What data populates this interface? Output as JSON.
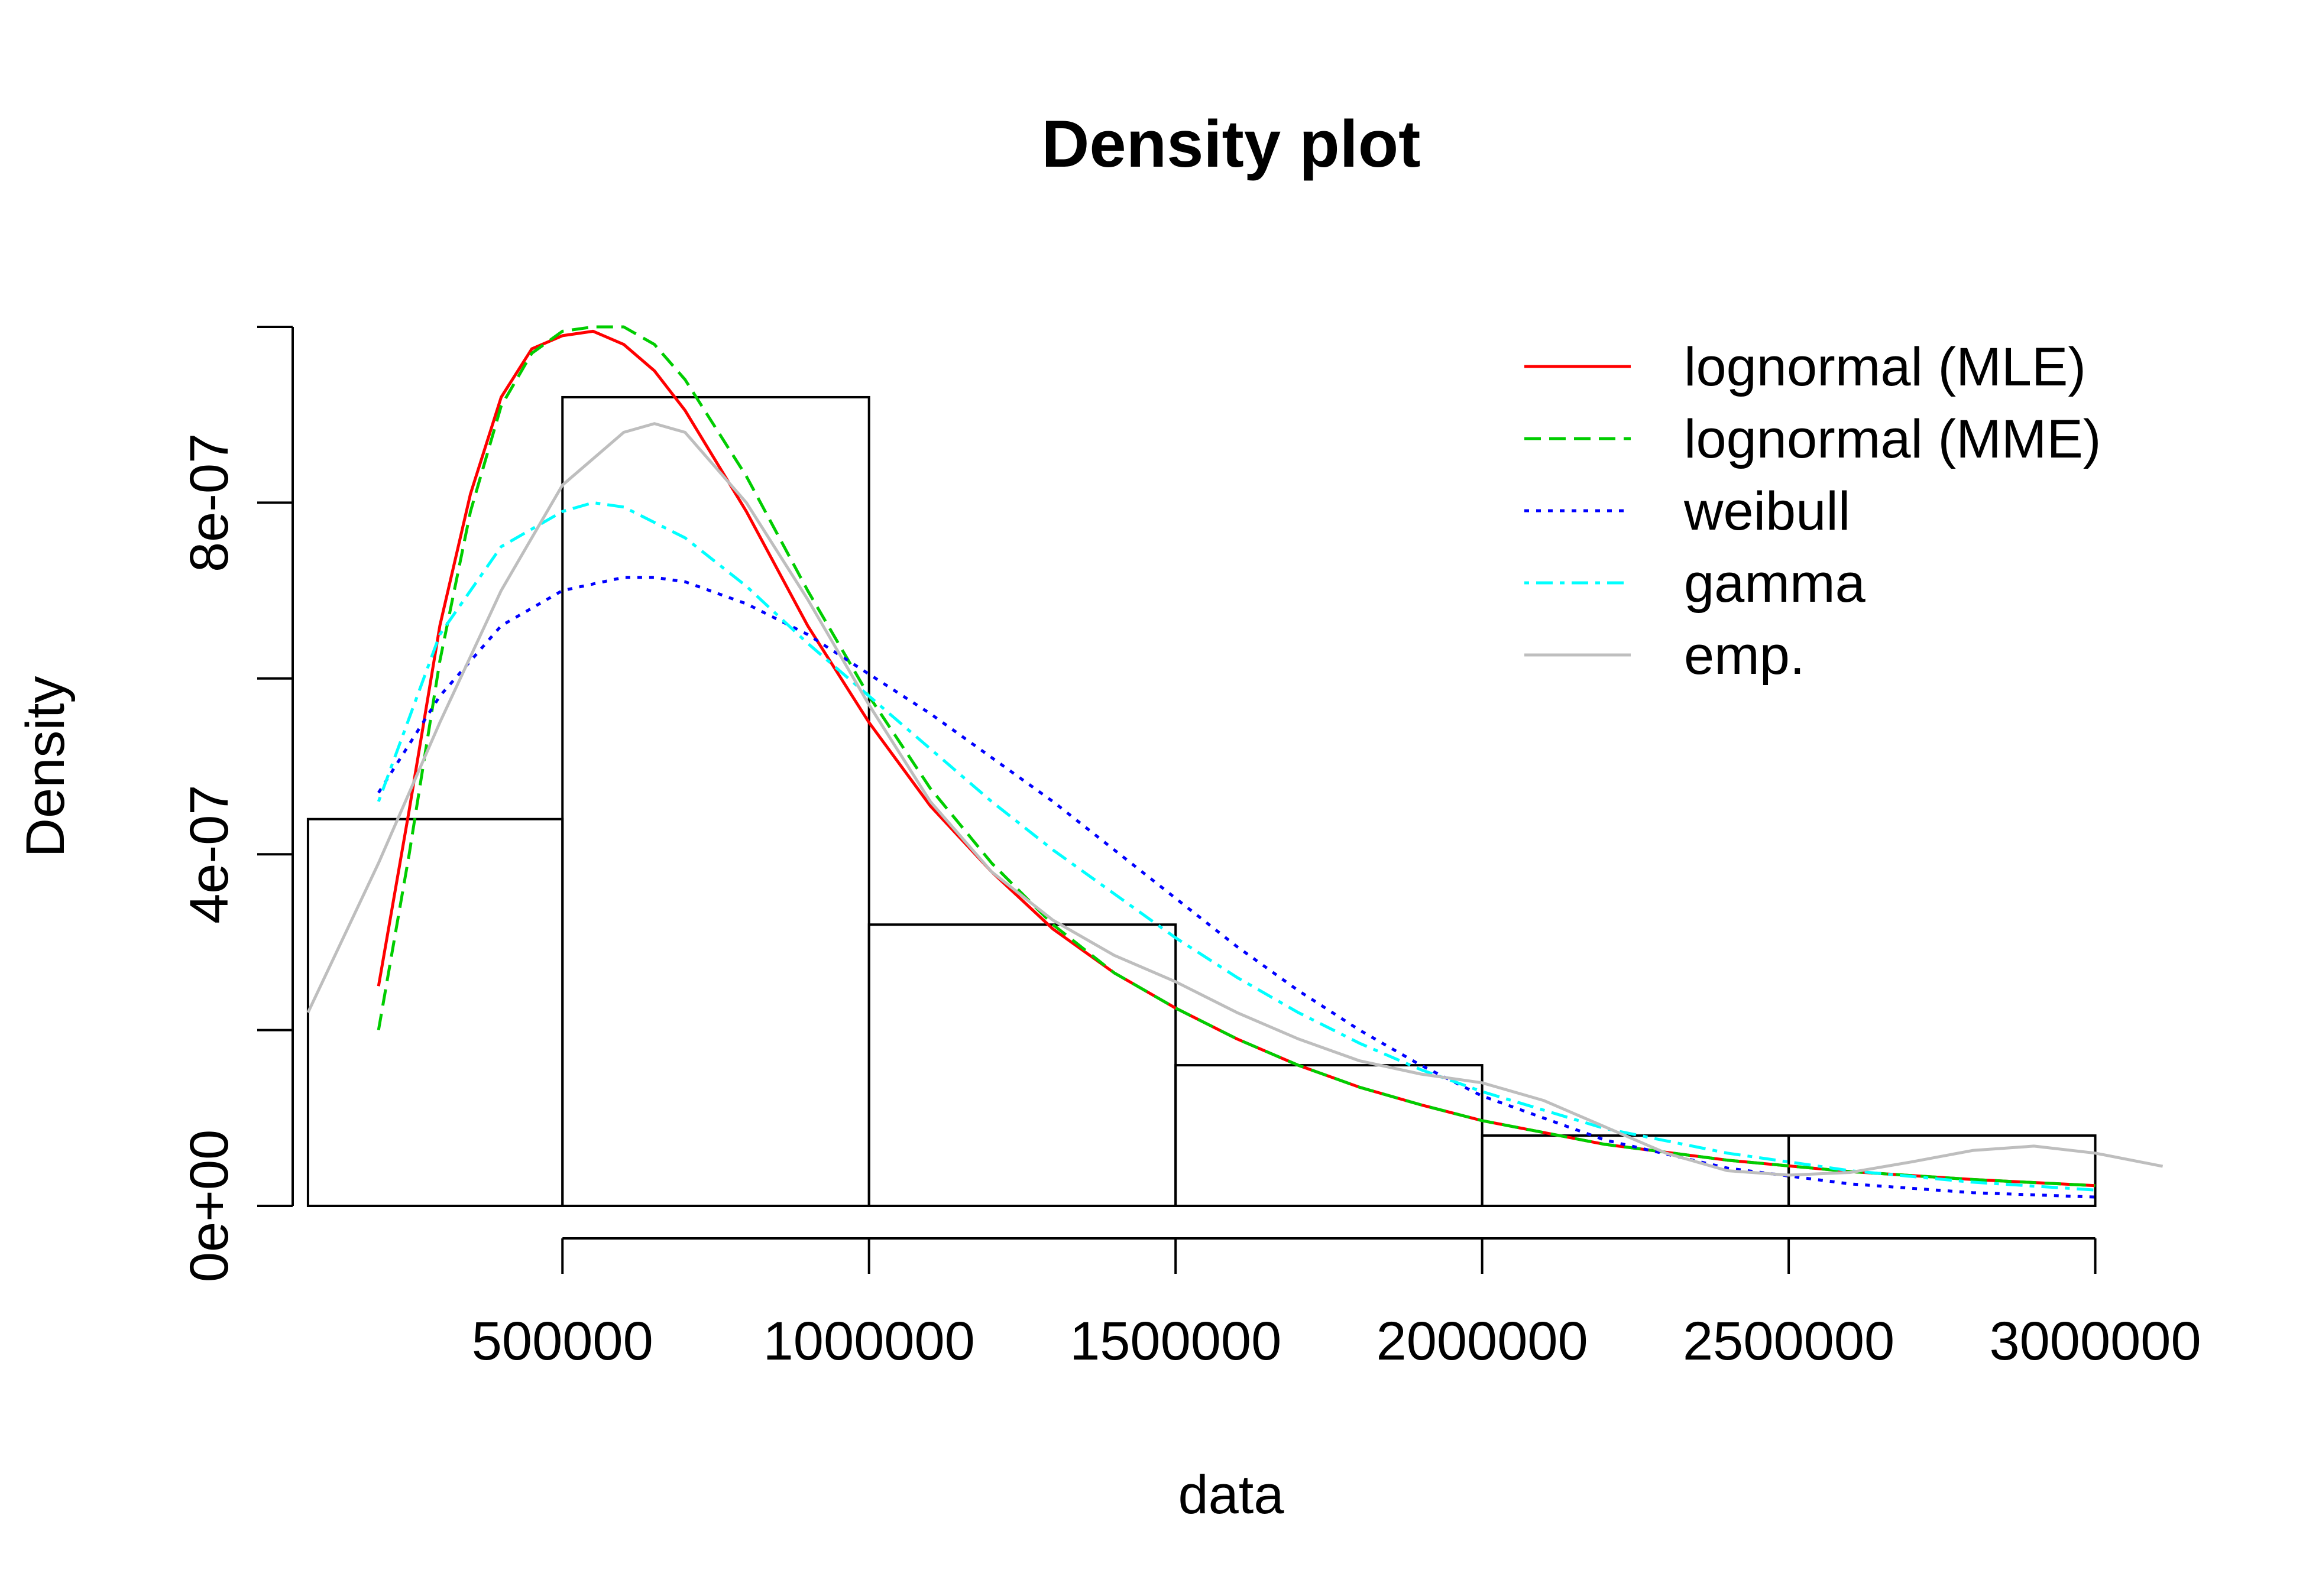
{
  "chart_data": {
    "type": "histogram",
    "title": "Density plot",
    "xlabel": "data",
    "ylabel": "Density",
    "xlim": [
      60000,
      3120000
    ],
    "ylim": [
      0,
      1e-06
    ],
    "x_ticks": [
      500000,
      1000000,
      1500000,
      2000000,
      2500000,
      3000000
    ],
    "x_tick_labels": [
      "500000",
      "1000000",
      "1500000",
      "2000000",
      "2500000",
      "3000000"
    ],
    "y_ticks": [
      0,
      2e-07,
      4e-07,
      6e-07,
      8e-07,
      1e-06
    ],
    "y_tick_labels": [
      "0e+00",
      "",
      "4e-07",
      "",
      "8e-07",
      ""
    ],
    "histogram": {
      "breaks": [
        85000,
        500000,
        1000000,
        1500000,
        2000000,
        2500000,
        3000000
      ],
      "densities": [
        4.4e-07,
        9.2e-07,
        3.2e-07,
        1.6e-07,
        8e-08,
        8e-08
      ]
    },
    "legend_position": "top-right",
    "series": [
      {
        "name": "lognormal (MLE)",
        "color": "#ff0000",
        "dash": "solid",
        "x": [
          200000,
          250000,
          300000,
          350000,
          400000,
          450000,
          500000,
          550000,
          600000,
          650000,
          700000,
          800000,
          900000,
          1000000,
          1100000,
          1200000,
          1300000,
          1400000,
          1500000,
          1600000,
          1700000,
          1800000,
          1900000,
          2000000,
          2200000,
          2400000,
          2600000,
          2800000,
          3000000
        ],
        "y": [
          2.5e-07,
          4.5e-07,
          6.6e-07,
          8.1e-07,
          9.2e-07,
          9.75e-07,
          9.9e-07,
          9.95e-07,
          9.8e-07,
          9.5e-07,
          9.05e-07,
          7.9e-07,
          6.6e-07,
          5.5e-07,
          4.55e-07,
          3.8e-07,
          3.15e-07,
          2.65e-07,
          2.25e-07,
          1.9e-07,
          1.6e-07,
          1.35e-07,
          1.15e-07,
          9.7e-08,
          7e-08,
          5.2e-08,
          3.9e-08,
          3e-08,
          2.3e-08
        ]
      },
      {
        "name": "lognormal (MME)",
        "color": "#00cd00",
        "dash": "dashed",
        "x": [
          200000,
          250000,
          300000,
          350000,
          400000,
          450000,
          500000,
          550000,
          600000,
          650000,
          700000,
          800000,
          900000,
          1000000,
          1100000,
          1200000,
          1300000,
          1400000,
          1500000,
          1600000,
          1700000,
          1800000,
          1900000,
          2000000,
          2200000,
          2400000,
          2600000,
          2800000,
          3000000
        ],
        "y": [
          2e-07,
          4e-07,
          6.2e-07,
          7.9e-07,
          9.1e-07,
          9.7e-07,
          9.95e-07,
          1e-06,
          1e-06,
          9.8e-07,
          9.4e-07,
          8.3e-07,
          7e-07,
          5.8e-07,
          4.75e-07,
          3.9e-07,
          3.2e-07,
          2.65e-07,
          2.25e-07,
          1.9e-07,
          1.6e-07,
          1.35e-07,
          1.15e-07,
          9.7e-08,
          7e-08,
          5.2e-08,
          3.9e-08,
          3e-08,
          2.3e-08
        ]
      },
      {
        "name": "weibull",
        "color": "#0000ff",
        "dash": "dotted",
        "x": [
          200000,
          300000,
          400000,
          500000,
          600000,
          650000,
          700000,
          800000,
          900000,
          1000000,
          1100000,
          1200000,
          1300000,
          1400000,
          1500000,
          1600000,
          1700000,
          1800000,
          1900000,
          2000000,
          2200000,
          2400000,
          2600000,
          2800000,
          3000000
        ],
        "y": [
          4.7e-07,
          5.8e-07,
          6.6e-07,
          7e-07,
          7.15e-07,
          7.15e-07,
          7.1e-07,
          6.85e-07,
          6.5e-07,
          6.05e-07,
          5.6e-07,
          5.1e-07,
          4.6e-07,
          4.05e-07,
          3.5e-07,
          2.95e-07,
          2.45e-07,
          2e-07,
          1.6e-07,
          1.25e-07,
          7.5e-08,
          4.3e-08,
          2.5e-08,
          1.5e-08,
          1e-08
        ]
      },
      {
        "name": "gamma",
        "color": "#00ffff",
        "dash": "dotdash",
        "x": [
          200000,
          300000,
          400000,
          500000,
          550000,
          600000,
          700000,
          800000,
          900000,
          1000000,
          1100000,
          1200000,
          1300000,
          1400000,
          1500000,
          1600000,
          1700000,
          1800000,
          1900000,
          2000000,
          2200000,
          2400000,
          2600000,
          2800000,
          3000000
        ],
        "y": [
          4.6e-07,
          6.5e-07,
          7.5e-07,
          7.9e-07,
          8e-07,
          7.95e-07,
          7.6e-07,
          7.05e-07,
          6.4e-07,
          5.8e-07,
          5.2e-07,
          4.6e-07,
          4.05e-07,
          3.55e-07,
          3.05e-07,
          2.6e-07,
          2.2e-07,
          1.85e-07,
          1.55e-07,
          1.3e-07,
          8.8e-08,
          6e-08,
          4e-08,
          2.7e-08,
          1.8e-08
        ]
      },
      {
        "name": "emp.",
        "color": "#bebebe",
        "dash": "solid",
        "x": [
          85000,
          200000,
          300000,
          400000,
          500000,
          600000,
          650000,
          700000,
          800000,
          900000,
          1000000,
          1100000,
          1200000,
          1300000,
          1400000,
          1500000,
          1600000,
          1700000,
          1800000,
          1900000,
          2000000,
          2100000,
          2200000,
          2300000,
          2400000,
          2500000,
          2600000,
          2700000,
          2800000,
          2900000,
          3000000,
          3110000
        ],
        "y": [
          2.2e-07,
          3.9e-07,
          5.5e-07,
          7e-07,
          8.2e-07,
          8.8e-07,
          8.9e-07,
          8.8e-07,
          8e-07,
          6.9e-07,
          5.7e-07,
          4.6e-07,
          3.8e-07,
          3.25e-07,
          2.85e-07,
          2.55e-07,
          2.2e-07,
          1.9e-07,
          1.65e-07,
          1.5e-07,
          1.4e-07,
          1.2e-07,
          9e-08,
          6e-08,
          4e-08,
          3.5e-08,
          3.8e-08,
          5e-08,
          6.3e-08,
          6.8e-08,
          6e-08,
          4.5e-08
        ]
      }
    ]
  }
}
